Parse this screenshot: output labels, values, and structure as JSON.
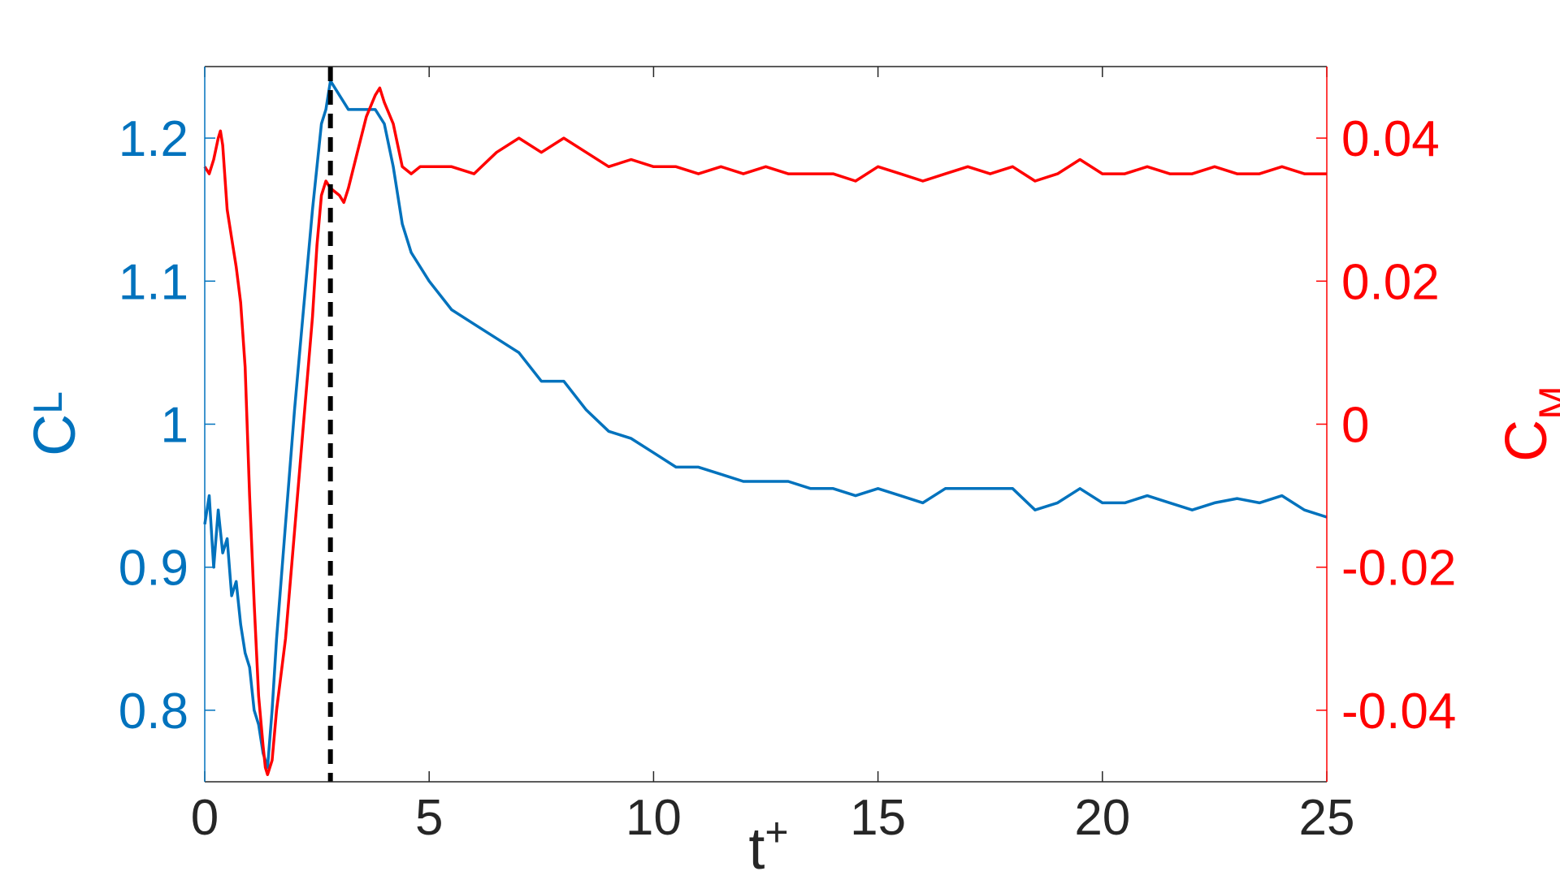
{
  "chart_data": {
    "type": "line",
    "xlabel": {
      "base": "t",
      "sup": "+"
    },
    "ylabel_left": {
      "base": "C",
      "sub": "L"
    },
    "ylabel_right": {
      "base": "C",
      "sub": "M"
    },
    "xlim": [
      0,
      25
    ],
    "ylim_left": [
      0.75,
      1.25
    ],
    "ylim_right": [
      -0.05,
      0.05
    ],
    "x_ticks": [
      "0",
      "5",
      "10",
      "15",
      "20",
      "25"
    ],
    "x_tick_values": [
      0,
      5,
      10,
      15,
      20,
      25
    ],
    "y_left_ticks": [
      "0.8",
      "0.9",
      "1",
      "1.1",
      "1.2"
    ],
    "y_left_tick_values": [
      0.8,
      0.9,
      1.0,
      1.1,
      1.2
    ],
    "y_right_ticks": [
      "-0.04",
      "-0.02",
      "0",
      "0.02",
      "0.04"
    ],
    "y_right_tick_values": [
      -0.04,
      -0.02,
      0,
      0.02,
      0.04
    ],
    "grid": false,
    "colors": {
      "cl": "#0072bd",
      "cm": "#ff0000",
      "marker": "#000000",
      "axis": "#262626"
    },
    "vline": {
      "x": 2.8,
      "style": "dashed"
    },
    "series": [
      {
        "axis": "left",
        "color": "#0072bd",
        "x": [
          0,
          0.1,
          0.2,
          0.3,
          0.4,
          0.5,
          0.6,
          0.7,
          0.8,
          0.9,
          1.0,
          1.1,
          1.2,
          1.3,
          1.4,
          1.5,
          1.6,
          1.8,
          2.0,
          2.2,
          2.4,
          2.6,
          2.7,
          2.8,
          3.0,
          3.2,
          3.5,
          3.8,
          4.0,
          4.2,
          4.4,
          4.6,
          5.0,
          5.5,
          6.0,
          6.5,
          7.0,
          7.5,
          8.0,
          8.5,
          9.0,
          9.5,
          10.0,
          10.5,
          11.0,
          11.5,
          12.0,
          12.5,
          13.0,
          13.5,
          14.0,
          14.5,
          15.0,
          15.5,
          16.0,
          16.5,
          17.0,
          17.5,
          18.0,
          18.5,
          19.0,
          19.5,
          20.0,
          20.5,
          21.0,
          21.5,
          22.0,
          22.5,
          23.0,
          23.5,
          24.0,
          24.5,
          25.0
        ],
        "values": [
          0.93,
          0.95,
          0.9,
          0.94,
          0.91,
          0.92,
          0.88,
          0.89,
          0.86,
          0.84,
          0.83,
          0.8,
          0.79,
          0.77,
          0.76,
          0.8,
          0.85,
          0.93,
          1.01,
          1.08,
          1.15,
          1.21,
          1.22,
          1.24,
          1.23,
          1.22,
          1.22,
          1.22,
          1.21,
          1.18,
          1.14,
          1.12,
          1.1,
          1.08,
          1.07,
          1.06,
          1.05,
          1.03,
          1.03,
          1.01,
          0.995,
          0.99,
          0.98,
          0.97,
          0.97,
          0.965,
          0.96,
          0.96,
          0.96,
          0.955,
          0.955,
          0.95,
          0.955,
          0.95,
          0.945,
          0.955,
          0.955,
          0.955,
          0.955,
          0.94,
          0.945,
          0.955,
          0.945,
          0.945,
          0.95,
          0.945,
          0.94,
          0.945,
          0.948,
          0.945,
          0.95,
          0.94,
          0.935
        ]
      },
      {
        "axis": "right",
        "color": "#ff0000",
        "x": [
          0,
          0.1,
          0.2,
          0.3,
          0.35,
          0.4,
          0.5,
          0.6,
          0.7,
          0.8,
          0.9,
          1.0,
          1.1,
          1.2,
          1.3,
          1.35,
          1.4,
          1.5,
          1.6,
          1.8,
          2.0,
          2.2,
          2.4,
          2.5,
          2.6,
          2.7,
          2.8,
          3.0,
          3.1,
          3.2,
          3.4,
          3.6,
          3.8,
          3.9,
          4.0,
          4.2,
          4.4,
          4.6,
          4.8,
          5.0,
          5.5,
          6.0,
          6.5,
          7.0,
          7.5,
          8.0,
          8.5,
          9.0,
          9.5,
          10.0,
          10.5,
          11.0,
          11.5,
          12.0,
          12.5,
          13.0,
          13.5,
          14.0,
          14.5,
          15.0,
          15.5,
          16.0,
          16.5,
          17.0,
          17.5,
          18.0,
          18.5,
          19.0,
          19.5,
          20.0,
          20.5,
          21.0,
          21.5,
          22.0,
          22.5,
          23.0,
          23.5,
          24.0,
          24.5,
          25.0
        ],
        "values": [
          0.036,
          0.035,
          0.037,
          0.04,
          0.041,
          0.039,
          0.03,
          0.026,
          0.022,
          0.017,
          0.008,
          -0.01,
          -0.025,
          -0.038,
          -0.045,
          -0.048,
          -0.049,
          -0.047,
          -0.04,
          -0.03,
          -0.015,
          0.0,
          0.015,
          0.025,
          0.032,
          0.034,
          0.033,
          0.032,
          0.031,
          0.033,
          0.038,
          0.043,
          0.046,
          0.047,
          0.045,
          0.042,
          0.036,
          0.035,
          0.036,
          0.036,
          0.036,
          0.035,
          0.038,
          0.04,
          0.038,
          0.04,
          0.038,
          0.036,
          0.037,
          0.036,
          0.036,
          0.035,
          0.036,
          0.035,
          0.036,
          0.035,
          0.035,
          0.035,
          0.034,
          0.036,
          0.035,
          0.034,
          0.035,
          0.036,
          0.035,
          0.036,
          0.034,
          0.035,
          0.037,
          0.035,
          0.035,
          0.036,
          0.035,
          0.035,
          0.036,
          0.035,
          0.035,
          0.036,
          0.035,
          0.035
        ]
      }
    ]
  }
}
